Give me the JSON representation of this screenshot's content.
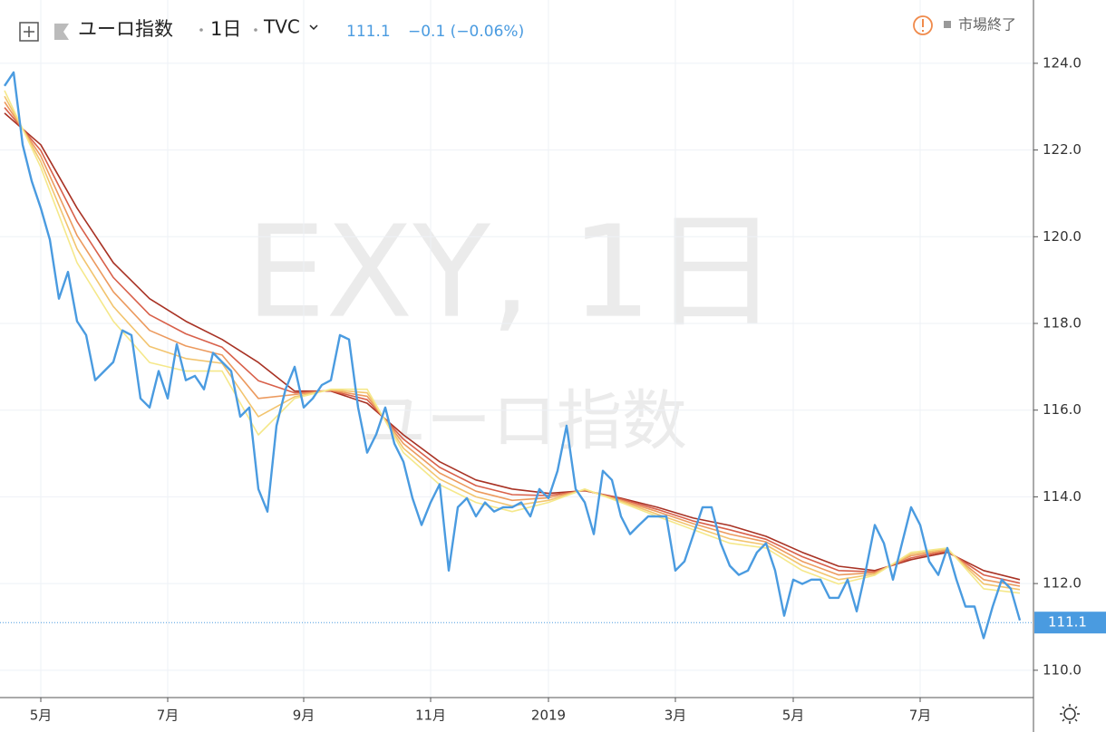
{
  "header": {
    "symbol": "ユーロ指数",
    "interval": "1日",
    "exchange": "TVC",
    "price": 111.1,
    "change": "−0.1 (−0.06%)",
    "status": "市場終了"
  },
  "watermark": {
    "line1": "EXY, 1日",
    "line2": "ユーロ指数"
  },
  "chart_data": [
    {
      "type": "line",
      "color": "#4a9be0",
      "categories": [
        null,
        null,
        null,
        null,
        "5月",
        null,
        null,
        null,
        null,
        null,
        null,
        null,
        null,
        null,
        null,
        null,
        null,
        null,
        "7月",
        null,
        null,
        null,
        null,
        null,
        null,
        null,
        null,
        null,
        null,
        null,
        null,
        null,
        null,
        "9月",
        null,
        null,
        null,
        null,
        null,
        null,
        null,
        null,
        null,
        null,
        null,
        null,
        null,
        "11月",
        null,
        null,
        null,
        null,
        null,
        null,
        null,
        null,
        null,
        null,
        null,
        null,
        "2019",
        null,
        null,
        null,
        null,
        null,
        null,
        null,
        null,
        null,
        null,
        null,
        null,
        null,
        "3月",
        null,
        null,
        null,
        null,
        null,
        null,
        null,
        null,
        null,
        null,
        null,
        null,
        "5月",
        null,
        null,
        null,
        null,
        null,
        null,
        null,
        null,
        null,
        null,
        null,
        null,
        null,
        "7月",
        null,
        null,
        null,
        null,
        null,
        null,
        null,
        null,
        null,
        null,
        null
      ],
      "values": [
        123.48,
        123.79,
        122.12,
        121.28,
        120.66,
        119.93,
        118.57,
        119.19,
        118.05,
        117.73,
        116.69,
        116.9,
        117.11,
        117.84,
        117.73,
        116.27,
        116.06,
        116.9,
        116.27,
        117.52,
        116.69,
        116.79,
        116.48,
        117.32,
        117.11,
        116.9,
        115.85,
        116.06,
        114.18,
        113.66,
        115.64,
        116.48,
        117.0,
        116.06,
        116.27,
        116.58,
        116.69,
        117.73,
        117.63,
        116.06,
        115.02,
        115.44,
        116.06,
        115.23,
        114.81,
        113.97,
        113.35,
        113.87,
        114.29,
        112.3,
        113.76,
        113.97,
        113.55,
        113.87,
        113.66,
        113.76,
        113.76,
        113.87,
        113.55,
        114.18,
        113.97,
        114.6,
        115.64,
        114.18,
        113.87,
        113.14,
        114.6,
        114.39,
        113.55,
        113.14,
        113.35,
        113.55,
        113.55,
        113.55,
        112.3,
        112.51,
        113.14,
        113.76,
        113.76,
        112.93,
        112.41,
        112.2,
        112.3,
        112.72,
        112.93,
        112.3,
        111.26,
        112.09,
        111.99,
        112.09,
        112.09,
        111.67,
        111.67,
        112.09,
        111.36,
        112.3,
        113.35,
        112.93,
        112.09,
        112.93,
        113.76,
        113.35,
        112.51,
        112.2,
        112.82,
        112.09,
        111.47,
        111.47,
        110.74,
        111.47,
        112.09,
        111.88,
        111.15
      ],
      "last_value": 111.1,
      "ylim": [
        109.37,
        125.46
      ],
      "yticks": [
        {
          "value": 110,
          "label": "110.0"
        },
        {
          "value": 112,
          "label": "112.0"
        },
        {
          "value": 114,
          "label": "114.0"
        },
        {
          "value": 116,
          "label": "116.0"
        },
        {
          "value": 118,
          "label": "118.0"
        },
        {
          "value": 120,
          "label": "120.0"
        },
        {
          "value": 122,
          "label": "122.0"
        },
        {
          "value": 124,
          "label": "124.0"
        }
      ],
      "grid": true
    },
    {
      "type": "line",
      "categories": [
        null,
        null,
        null,
        null,
        null,
        null,
        null,
        null,
        null,
        null,
        null,
        null,
        null,
        null,
        null,
        null,
        null,
        null,
        null,
        null,
        null,
        null,
        null,
        null,
        null,
        null,
        null,
        null,
        null
      ],
      "series": [
        {
          "color": "#a83224",
          "values": [
            122.85,
            122.12,
            120.66,
            119.4,
            118.57,
            118.05,
            117.63,
            117.1,
            116.44,
            116.44,
            116.16,
            115.43,
            114.81,
            114.39,
            114.18,
            114.08,
            114.14,
            113.97,
            113.76,
            113.51,
            113.34,
            113.09,
            112.72,
            112.4,
            112.3,
            112.55,
            112.72,
            112.3,
            112.09
          ]
        },
        {
          "color": "#d8604a",
          "values": [
            122.98,
            121.99,
            120.35,
            119.06,
            118.2,
            117.76,
            117.45,
            116.68,
            116.4,
            116.45,
            116.24,
            115.33,
            114.68,
            114.26,
            114.05,
            114.03,
            114.15,
            113.95,
            113.71,
            113.44,
            113.24,
            113.02,
            112.62,
            112.3,
            112.27,
            112.59,
            112.75,
            112.2,
            112.01
          ]
        },
        {
          "color": "#ec9a5e",
          "values": [
            123.11,
            121.86,
            120.03,
            118.73,
            117.84,
            117.48,
            117.27,
            116.27,
            116.36,
            116.46,
            116.32,
            115.23,
            114.55,
            114.13,
            113.92,
            113.98,
            114.16,
            113.92,
            113.66,
            113.38,
            113.14,
            112.96,
            112.51,
            112.2,
            112.25,
            112.64,
            112.77,
            112.09,
            111.94
          ]
        },
        {
          "color": "#f2c46e",
          "values": [
            123.24,
            121.73,
            119.72,
            118.39,
            117.47,
            117.19,
            117.08,
            115.85,
            116.31,
            116.47,
            116.4,
            115.12,
            114.41,
            114.0,
            113.79,
            113.92,
            114.17,
            113.9,
            113.6,
            113.31,
            113.03,
            112.89,
            112.41,
            112.09,
            112.22,
            112.68,
            112.8,
            111.99,
            111.86
          ]
        },
        {
          "color": "#f5e88a",
          "values": [
            123.37,
            121.6,
            119.4,
            118.05,
            117.1,
            116.9,
            116.9,
            115.43,
            116.27,
            116.48,
            116.48,
            115.02,
            114.28,
            113.87,
            113.66,
            113.87,
            114.18,
            113.87,
            113.55,
            113.24,
            112.93,
            112.82,
            112.3,
            111.99,
            112.19,
            112.72,
            112.82,
            111.88,
            111.78
          ]
        }
      ]
    }
  ]
}
